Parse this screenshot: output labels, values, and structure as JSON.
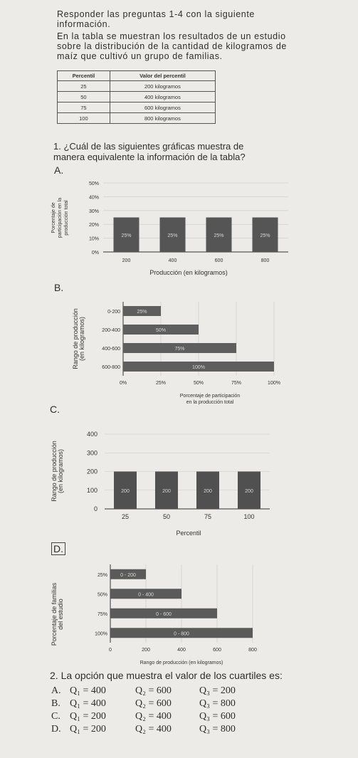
{
  "intro": {
    "line1": "Responder las preguntas 1-4 con la siguiente",
    "line2": "información.",
    "line3": "En la tabla se muestran los resultados de un estudio",
    "line4": "sobre la distribución de la cantidad de kilogramos de",
    "line5": "maíz que cultivó un grupo de familias."
  },
  "table": {
    "headers": [
      "Percentil",
      "Valor del percentil"
    ],
    "rows": [
      [
        "25",
        "200 kilogramos"
      ],
      [
        "50",
        "400 kilogramos"
      ],
      [
        "75",
        "600 kilogramos"
      ],
      [
        "100",
        "800 kilogramos"
      ]
    ]
  },
  "question1": {
    "line1": "1. ¿Cuál de las siguientes gráficas muestra de",
    "line2": "manera equivalente la información de la tabla?"
  },
  "options": {
    "a": "A.",
    "b": "B.",
    "c": "C.",
    "d": "D."
  },
  "chart_data": [
    {
      "type": "bar",
      "option": "A",
      "categories": [
        "200",
        "400",
        "600",
        "800"
      ],
      "values": [
        25,
        25,
        25,
        25
      ],
      "bar_labels": [
        "25%",
        "25%",
        "25%",
        "25%"
      ],
      "y_ticks": [
        "0%",
        "10%",
        "20%",
        "30%",
        "40%",
        "50%"
      ],
      "ylim": [
        0,
        50
      ],
      "ylabel_line1": "Porcentaje de",
      "ylabel_line2": "participación en la",
      "ylabel_line3": "producción total",
      "xlabel": "Producción (en kilogramos)",
      "bar_color": "#555555"
    },
    {
      "type": "bar",
      "option": "B",
      "orientation": "horizontal",
      "categories": [
        "0-200",
        "200-400",
        "400-600",
        "600-800"
      ],
      "values": [
        25,
        50,
        75,
        100
      ],
      "bar_labels": [
        "25%",
        "50%",
        "75%",
        "100%"
      ],
      "x_ticks": [
        "0%",
        "25%",
        "50%",
        "75%",
        "100%"
      ],
      "xlim": [
        0,
        100
      ],
      "ylabel_line1": "Rango de producción",
      "ylabel_line2": "(en kilogramos)",
      "xlabel_line1": "Porcentaje de participación",
      "xlabel_line2": "en la producción total",
      "bar_color": "#5e5e5e"
    },
    {
      "type": "bar",
      "option": "C",
      "categories": [
        "25",
        "50",
        "75",
        "100"
      ],
      "values": [
        200,
        200,
        200,
        200
      ],
      "bar_labels": [
        "200",
        "200",
        "200",
        "200"
      ],
      "y_ticks": [
        "0",
        "100",
        "200",
        "300",
        "400"
      ],
      "ylim": [
        0,
        400
      ],
      "ylabel_line1": "Rango de producción",
      "ylabel_line2": "(en kilogramos)",
      "xlabel": "Percentil",
      "bar_color": "#505050"
    },
    {
      "type": "bar",
      "option": "D",
      "orientation": "horizontal",
      "categories": [
        "25%",
        "50%",
        "75%",
        "100%"
      ],
      "values": [
        200,
        400,
        600,
        800
      ],
      "bar_labels": [
        "0 - 200",
        "0 - 400",
        "0 - 600",
        "0 - 800"
      ],
      "x_ticks": [
        "0",
        "200",
        "400",
        "600",
        "800"
      ],
      "xlim": [
        0,
        800
      ],
      "ylabel_line1": "Porcentaje de familias",
      "ylabel_line2": "del estudio",
      "xlabel": "Rango de producción (en kilogramos)",
      "bar_color": "#5a5a5a"
    }
  ],
  "question2": {
    "title": "2. La opción que muestra el valor de los cuartiles es:",
    "options": [
      {
        "letter": "A.",
        "q1": "Q₁ = 400",
        "q2": "Q₂ = 600",
        "q3": "Q₃ = 200"
      },
      {
        "letter": "B.",
        "q1": "Q₁ = 400",
        "q2": "Q₂ = 600",
        "q3": "Q₃ = 800"
      },
      {
        "letter": "C.",
        "q1": "Q₁ = 200",
        "q2": "Q₂ = 400",
        "q3": "Q₃ = 600"
      },
      {
        "letter": "D.",
        "q1": "Q₁ = 200",
        "q2": "Q₂ = 400",
        "q3": "Q₃ = 800"
      }
    ]
  }
}
